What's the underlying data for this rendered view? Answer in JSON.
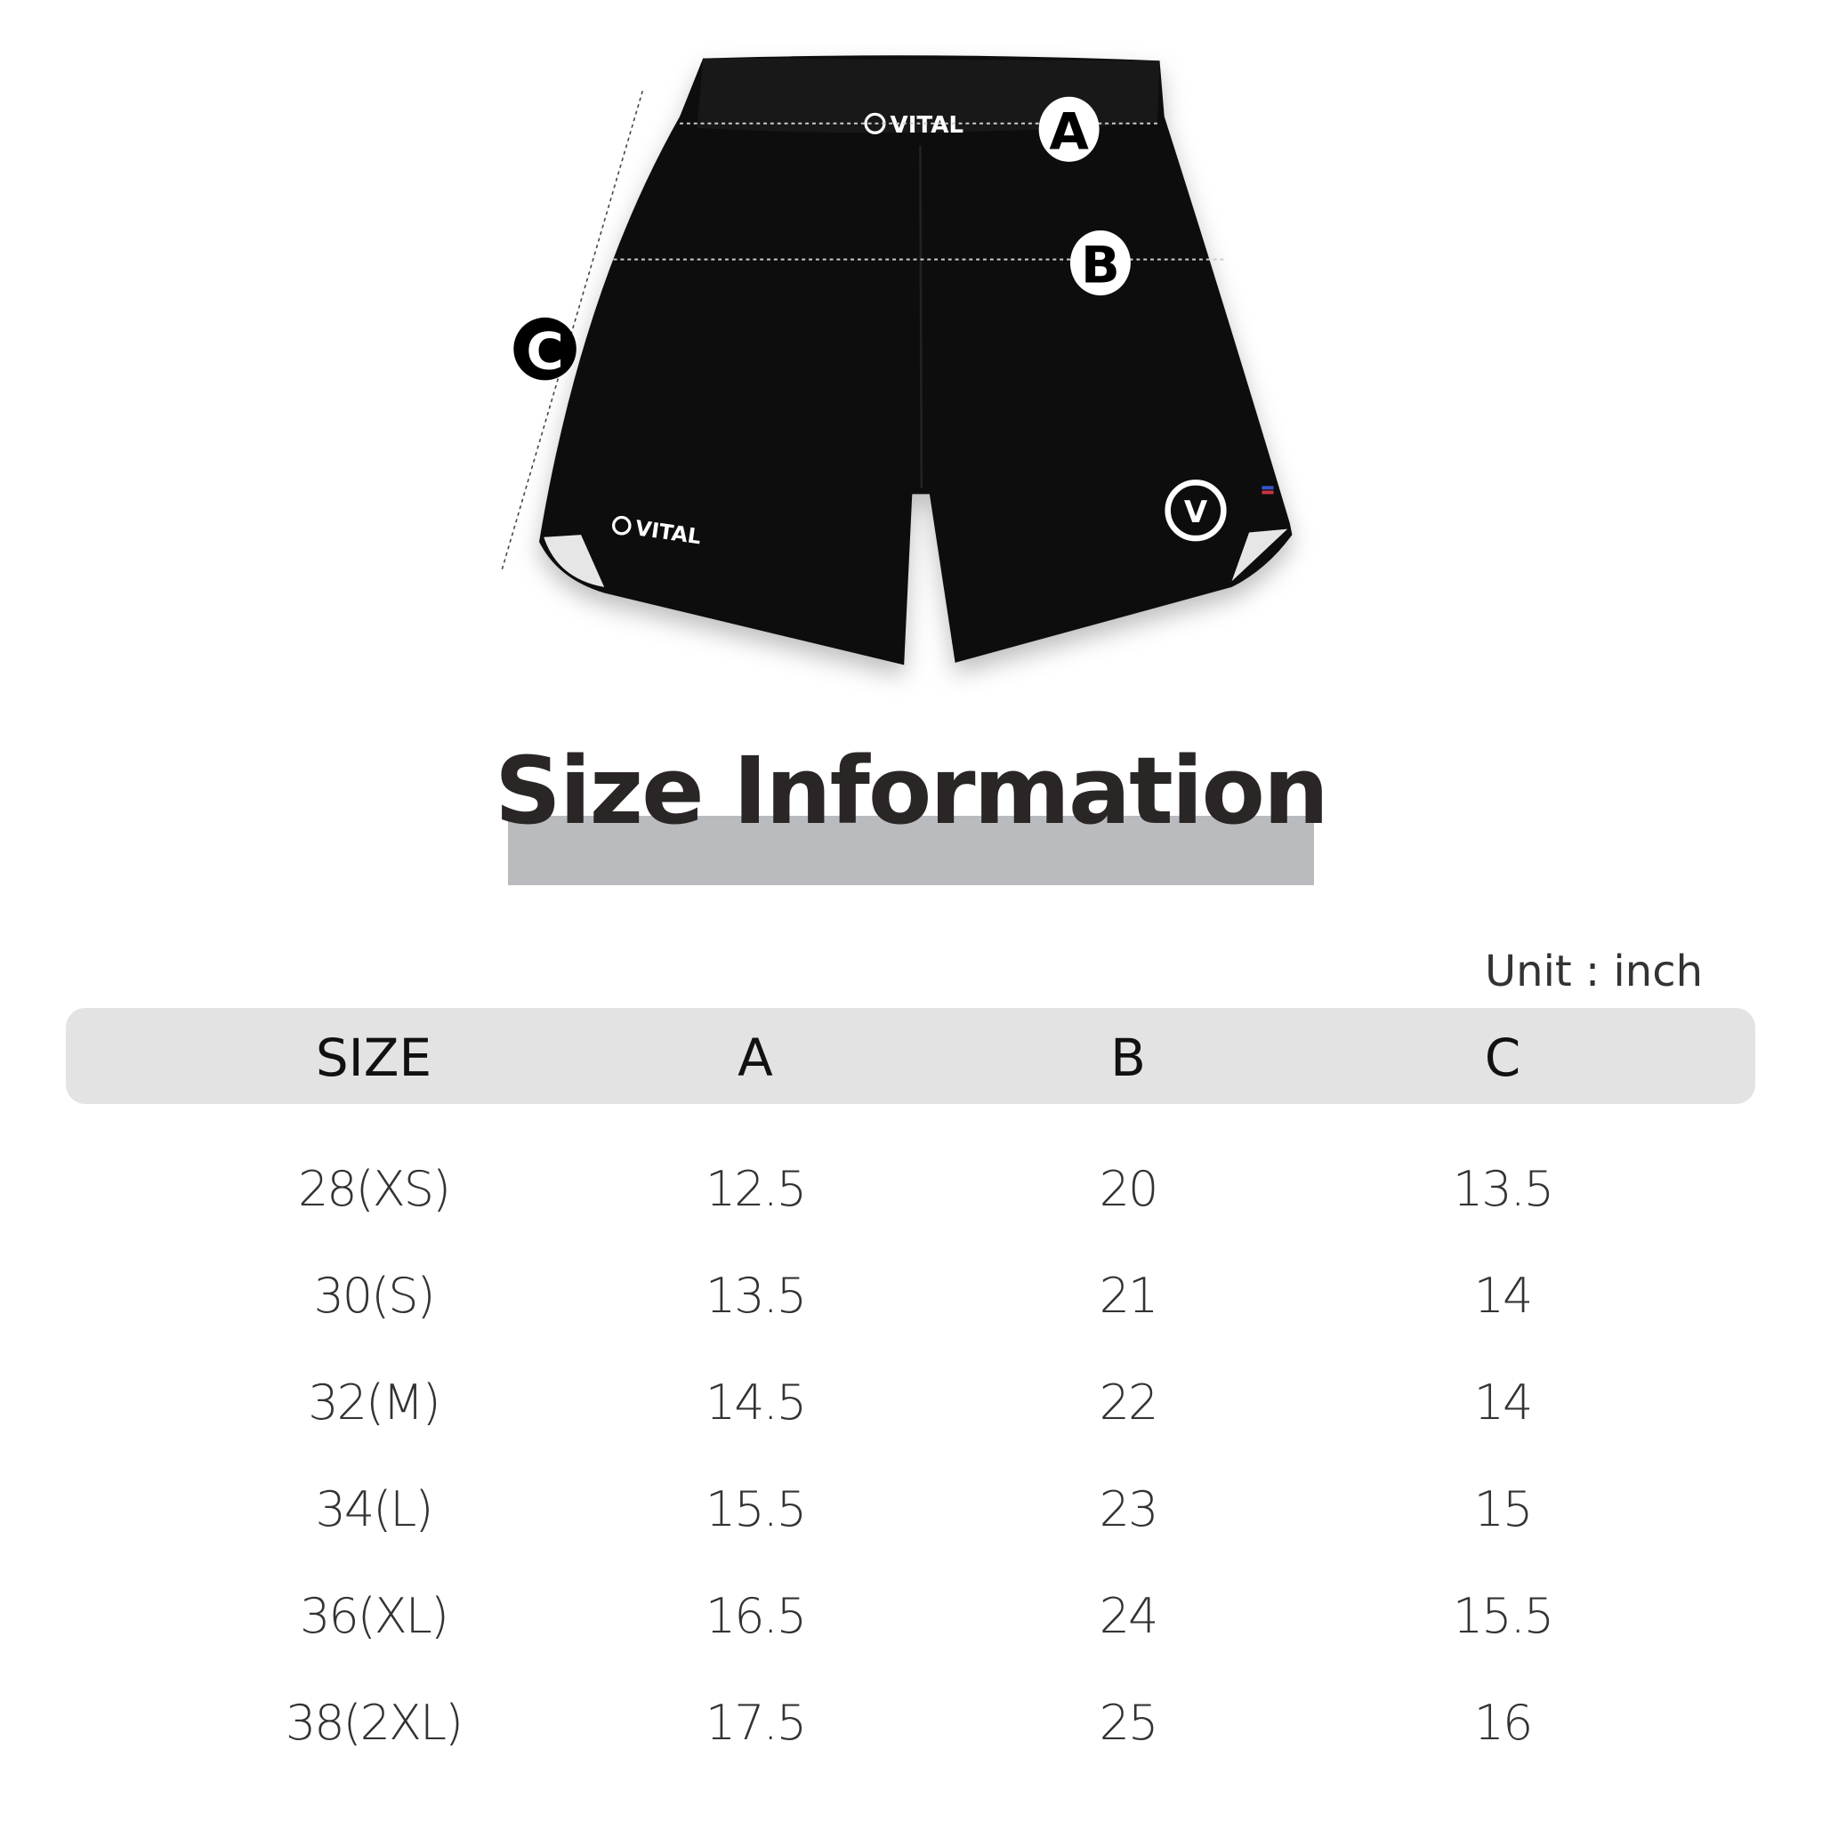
{
  "image": {
    "brand_text": "VITAL",
    "labels": [
      "A",
      "B",
      "C"
    ]
  },
  "title": "Size Information",
  "unit": "Unit : inch",
  "table": {
    "headers": [
      "SIZE",
      "A",
      "B",
      "C"
    ],
    "rows": [
      [
        "28(XS)",
        "12.5",
        "20",
        "13.5"
      ],
      [
        "30(S)",
        "13.5",
        "21",
        "14"
      ],
      [
        "32(M)",
        "14.5",
        "22",
        "14"
      ],
      [
        "34(L)",
        "15.5",
        "23",
        "15"
      ],
      [
        "36(XL)",
        "16.5",
        "24",
        "15.5"
      ],
      [
        "38(2XL)",
        "17.5",
        "25",
        "16"
      ]
    ]
  },
  "colors": {
    "title_bar": "#b9bbbf",
    "header_bg": "#e3e3e3",
    "shorts": "#0d0d0d"
  }
}
